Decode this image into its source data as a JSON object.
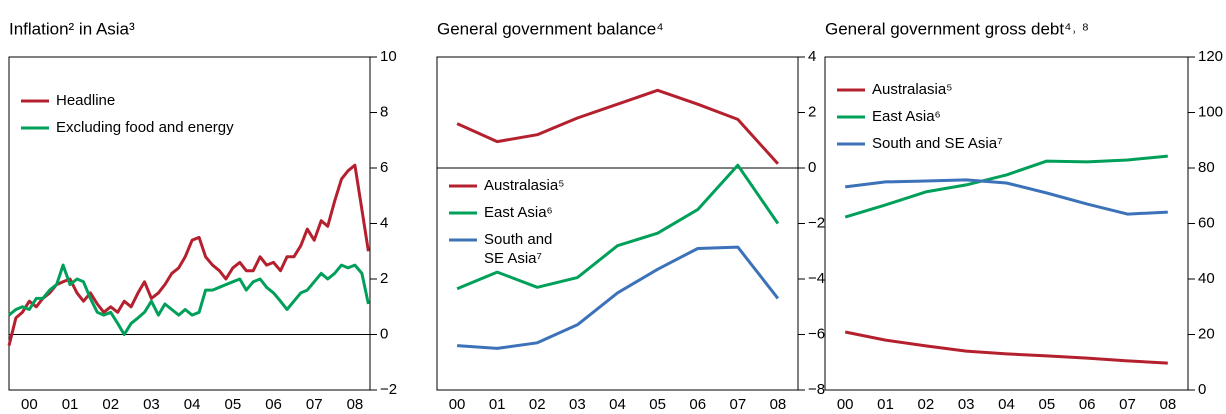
{
  "chart_data": [
    {
      "type": "line",
      "title": "Inflation² in Asia³",
      "x": [
        0,
        0.17,
        0.33,
        0.5,
        0.67,
        0.83,
        1,
        1.17,
        1.33,
        1.5,
        1.67,
        1.83,
        2,
        2.17,
        2.33,
        2.5,
        2.67,
        2.83,
        3,
        3.17,
        3.33,
        3.5,
        3.67,
        3.83,
        4,
        4.17,
        4.33,
        4.5,
        4.67,
        4.83,
        5,
        5.17,
        5.33,
        5.5,
        5.67,
        5.83,
        6,
        6.17,
        6.33,
        6.5,
        6.67,
        6.83,
        7,
        7.17,
        7.33,
        7.5,
        7.67,
        7.83,
        8,
        8.17,
        8.33,
        8.5,
        8.67,
        8.83
      ],
      "series": [
        {
          "name": "Headline",
          "color": "#b5202e",
          "values": [
            -0.4,
            0.6,
            0.8,
            1.2,
            1.0,
            1.3,
            1.5,
            1.8,
            1.9,
            2.0,
            1.5,
            1.2,
            1.5,
            1.1,
            0.8,
            1.0,
            0.8,
            1.2,
            1.0,
            1.5,
            1.9,
            1.3,
            1.5,
            1.8,
            2.2,
            2.4,
            2.8,
            3.4,
            3.5,
            2.8,
            2.5,
            2.3,
            2.0,
            2.4,
            2.6,
            2.3,
            2.3,
            2.8,
            2.5,
            2.6,
            2.3,
            2.8,
            2.8,
            3.2,
            3.8,
            3.4,
            4.1,
            3.9,
            4.8,
            5.6,
            5.9,
            6.1,
            4.5,
            3.0
          ]
        },
        {
          "name": "Excluding food and energy",
          "color": "#00a05a",
          "values": [
            0.7,
            0.9,
            1.0,
            0.9,
            1.3,
            1.3,
            1.6,
            1.8,
            2.5,
            1.8,
            2.0,
            1.9,
            1.3,
            0.8,
            0.7,
            0.8,
            0.4,
            0.0,
            0.4,
            0.6,
            0.8,
            1.2,
            0.7,
            1.1,
            0.9,
            0.7,
            0.9,
            0.7,
            0.8,
            1.6,
            1.6,
            1.7,
            1.8,
            1.9,
            2.0,
            1.6,
            1.9,
            2.0,
            1.7,
            1.5,
            1.2,
            0.9,
            1.2,
            1.5,
            1.6,
            1.9,
            2.2,
            2.0,
            2.2,
            2.5,
            2.4,
            2.5,
            2.2,
            1.1
          ]
        }
      ],
      "xlim": [
        0,
        8.87
      ],
      "xticks": [
        {
          "value": 0.5,
          "label": "00"
        },
        {
          "value": 1.5,
          "label": "01"
        },
        {
          "value": 2.5,
          "label": "02"
        },
        {
          "value": 3.5,
          "label": "03"
        },
        {
          "value": 4.5,
          "label": "04"
        },
        {
          "value": 5.5,
          "label": "05"
        },
        {
          "value": 6.5,
          "label": "06"
        },
        {
          "value": 7.5,
          "label": "07"
        },
        {
          "value": 8.5,
          "label": "08"
        }
      ],
      "ylim": [
        -2,
        10
      ],
      "yticks": [
        {
          "value": -2,
          "label": "−2"
        },
        0,
        2,
        4,
        6,
        8,
        10
      ],
      "zero_line": true,
      "legend_loc": "upper left"
    },
    {
      "type": "line",
      "title": "General government balance⁴",
      "categories": [
        "00",
        "01",
        "02",
        "03",
        "04",
        "05",
        "06",
        "07",
        "08"
      ],
      "series": [
        {
          "name": "Australasia⁵",
          "color": "#b5202e",
          "values": [
            1.6,
            0.95,
            1.2,
            1.8,
            2.3,
            2.8,
            2.3,
            1.75,
            0.15
          ]
        },
        {
          "name": "East Asia⁶",
          "color": "#00a05a",
          "values": [
            -4.35,
            -3.75,
            -4.3,
            -3.95,
            -2.8,
            -2.35,
            -1.5,
            0.1,
            -2.0
          ]
        },
        {
          "name": "South and SE Asia⁷",
          "color": "#3c72b8",
          "values": [
            -6.4,
            -6.5,
            -6.3,
            -5.65,
            -4.5,
            -3.65,
            -2.9,
            -2.85,
            -4.7
          ]
        }
      ],
      "ylim": [
        -8,
        4
      ],
      "yticks": [
        {
          "value": -8,
          "label": "−8"
        },
        {
          "value": -6,
          "label": "−6"
        },
        {
          "value": -4,
          "label": "−4"
        },
        {
          "value": -2,
          "label": "−2"
        },
        0,
        2,
        4
      ],
      "zero_line": true,
      "legend_loc": "center left"
    },
    {
      "type": "line",
      "title": "General government gross debt⁴˒ ⁸",
      "categories": [
        "00",
        "01",
        "02",
        "03",
        "04",
        "05",
        "06",
        "07",
        "08"
      ],
      "series": [
        {
          "name": "Australasia⁵",
          "color": "#b5202e",
          "values": [
            20.9,
            18,
            15.9,
            14,
            13,
            12.3,
            11.5,
            10.5,
            9.7
          ]
        },
        {
          "name": "East Asia⁶",
          "color": "#00a05a",
          "values": [
            62.3,
            66.7,
            71.4,
            73.9,
            77.5,
            82.5,
            82.2,
            82.9,
            84.3
          ]
        },
        {
          "name": "South and SE Asia⁷",
          "color": "#3c72b8",
          "values": [
            73.2,
            75,
            75.3,
            75.7,
            74.6,
            71,
            67,
            63.4,
            64.1
          ]
        }
      ],
      "ylim": [
        0,
        120
      ],
      "yticks": [
        0,
        20,
        40,
        60,
        80,
        100,
        120
      ],
      "zero_line": false,
      "legend_loc": "upper left"
    }
  ]
}
